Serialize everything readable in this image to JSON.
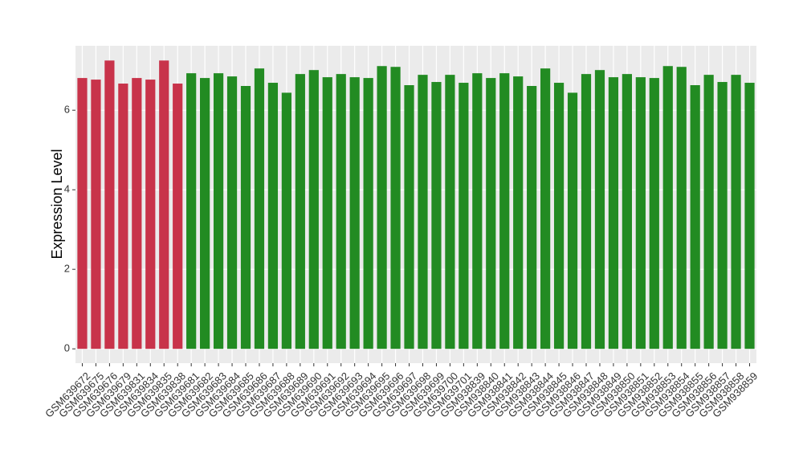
{
  "chart_data": {
    "type": "bar",
    "y_label": "Expression Level",
    "categories": [
      "GSM639672",
      "GSM639675",
      "GSM639676",
      "GSM639679",
      "GSM639831",
      "GSM639834",
      "GSM639835",
      "GSM639838",
      "GSM639681",
      "GSM639682",
      "GSM639683",
      "GSM639684",
      "GSM639685",
      "GSM639686",
      "GSM639687",
      "GSM639688",
      "GSM639689",
      "GSM639690",
      "GSM639691",
      "GSM639692",
      "GSM639693",
      "GSM639694",
      "GSM639695",
      "GSM639696",
      "GSM639697",
      "GSM639698",
      "GSM639699",
      "GSM639700",
      "GSM639701",
      "GSM938839",
      "GSM938840",
      "GSM938841",
      "GSM938842",
      "GSM938843",
      "GSM938844",
      "GSM938845",
      "GSM938846",
      "GSM938847",
      "GSM938848",
      "GSM938849",
      "GSM938850",
      "GSM938851",
      "GSM938852",
      "GSM938853",
      "GSM938854",
      "GSM938855",
      "GSM938856",
      "GSM938857",
      "GSM938858",
      "GSM938859"
    ],
    "values": [
      6.81,
      6.77,
      7.25,
      6.67,
      6.81,
      6.77,
      7.25,
      6.67,
      6.93,
      6.81,
      6.93,
      6.85,
      6.61,
      7.05,
      6.69,
      6.44,
      6.91,
      7.01,
      6.83,
      6.91,
      6.83,
      6.81,
      7.11,
      7.09,
      6.63,
      6.89,
      6.71,
      6.89,
      6.69,
      6.93,
      6.81,
      6.93,
      6.85,
      6.61,
      7.05,
      6.69,
      6.44,
      6.91,
      7.01,
      6.83,
      6.91,
      6.83,
      6.81,
      7.11,
      7.09,
      6.63,
      6.89,
      6.71,
      6.89,
      6.69
    ],
    "colors": [
      "#c8334a",
      "#c8334a",
      "#c8334a",
      "#c8334a",
      "#c8334a",
      "#c8334a",
      "#c8334a",
      "#c8334a",
      "#228b22",
      "#228b22",
      "#228b22",
      "#228b22",
      "#228b22",
      "#228b22",
      "#228b22",
      "#228b22",
      "#228b22",
      "#228b22",
      "#228b22",
      "#228b22",
      "#228b22",
      "#228b22",
      "#228b22",
      "#228b22",
      "#228b22",
      "#228b22",
      "#228b22",
      "#228b22",
      "#228b22",
      "#228b22",
      "#228b22",
      "#228b22",
      "#228b22",
      "#228b22",
      "#228b22",
      "#228b22",
      "#228b22",
      "#228b22",
      "#228b22",
      "#228b22",
      "#228b22",
      "#228b22",
      "#228b22",
      "#228b22",
      "#228b22",
      "#228b22",
      "#228b22",
      "#228b22",
      "#228b22",
      "#228b22"
    ],
    "ylim": [
      -0.36,
      7.62
    ],
    "yticks": [
      0,
      2,
      4,
      6
    ],
    "grid": true
  }
}
